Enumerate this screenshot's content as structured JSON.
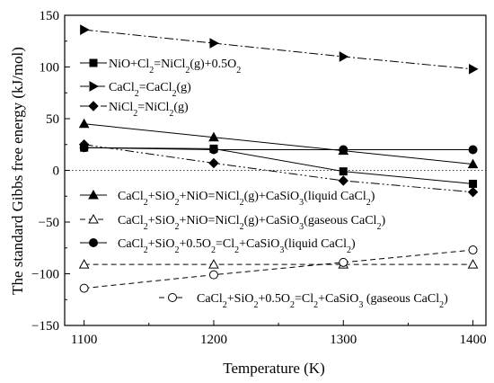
{
  "chart_data": {
    "type": "line",
    "xlabel": "Temperature (K)",
    "ylabel": "The standard Gibbs free energy (kJ/mol)",
    "xlim": [
      1085,
      1410
    ],
    "ylim": [
      -150,
      150
    ],
    "x_ticks": [
      1100,
      1200,
      1300,
      1400
    ],
    "y_ticks": [
      -150,
      -100,
      -50,
      0,
      50,
      100,
      150
    ],
    "zero_line": true,
    "grid": false,
    "series": [
      {
        "legend": [
          {
            "t": "NiO+Cl"
          },
          {
            "t": "2",
            "s": "sub"
          },
          {
            "t": "=NiCl"
          },
          {
            "t": "2",
            "s": "sub"
          },
          {
            "t": "(g)+0.5O"
          },
          {
            "t": "2",
            "s": "sub"
          }
        ],
        "marker": "square",
        "filled": true,
        "dash": "",
        "x": [
          1100,
          1200,
          1300,
          1400
        ],
        "y": [
          22,
          21,
          -1,
          -13
        ]
      },
      {
        "legend": [
          {
            "t": "CaCl"
          },
          {
            "t": "2",
            "s": "sub"
          },
          {
            "t": "=CaCl"
          },
          {
            "t": "2",
            "s": "sub"
          },
          {
            "t": "(g)"
          }
        ],
        "marker": "triangle-right",
        "filled": true,
        "dash": "10 3 2 3",
        "x": [
          1100,
          1200,
          1300,
          1400
        ],
        "y": [
          136,
          123,
          110,
          98
        ]
      },
      {
        "legend": [
          {
            "t": "NiCl"
          },
          {
            "t": "2",
            "s": "sub"
          },
          {
            "t": "=NiCl"
          },
          {
            "t": "2",
            "s": "sub"
          },
          {
            "t": "(g)"
          }
        ],
        "marker": "diamond",
        "filled": true,
        "dash": "10 3 2 3 2 3",
        "x": [
          1100,
          1200,
          1300,
          1400
        ],
        "y": [
          25,
          7,
          -10,
          -21
        ]
      },
      {
        "legend": [
          {
            "t": "CaCl"
          },
          {
            "t": "2",
            "s": "sub"
          },
          {
            "t": "+SiO"
          },
          {
            "t": "2",
            "s": "sub"
          },
          {
            "t": "+NiO=NiCl"
          },
          {
            "t": "2",
            "s": "sub"
          },
          {
            "t": "(g)+CaSiO"
          },
          {
            "t": "3",
            "s": "sub"
          },
          {
            "t": "(liquid CaCl"
          },
          {
            "t": "2",
            "s": "sub"
          },
          {
            "t": ")"
          }
        ],
        "marker": "triangle-up",
        "filled": true,
        "dash": "",
        "x": [
          1100,
          1200,
          1300,
          1400
        ],
        "y": [
          45,
          32,
          19,
          6
        ]
      },
      {
        "legend": [
          {
            "t": "CaCl"
          },
          {
            "t": "2",
            "s": "sub"
          },
          {
            "t": "+SiO"
          },
          {
            "t": "2",
            "s": "sub"
          },
          {
            "t": "+NiO=NiCl"
          },
          {
            "t": "2",
            "s": "sub"
          },
          {
            "t": "(g)+CaSiO"
          },
          {
            "t": "3",
            "s": "sub"
          },
          {
            "t": "(gaseous CaCl"
          },
          {
            "t": "2",
            "s": "sub"
          },
          {
            "t": ")"
          }
        ],
        "marker": "triangle-up",
        "filled": false,
        "dash": "6 4",
        "x": [
          1100,
          1200,
          1300,
          1400
        ],
        "y": [
          -91,
          -91,
          -91,
          -91
        ]
      },
      {
        "legend": [
          {
            "t": "CaCl"
          },
          {
            "t": "2",
            "s": "sub"
          },
          {
            "t": "+SiO"
          },
          {
            "t": "2",
            "s": "sub"
          },
          {
            "t": "+0.5O"
          },
          {
            "t": "2",
            "s": "sub"
          },
          {
            "t": "=Cl"
          },
          {
            "t": "2",
            "s": "sub"
          },
          {
            "t": "+CaSiO"
          },
          {
            "t": "3",
            "s": "sub"
          },
          {
            "t": "(liquid CaCl"
          },
          {
            "t": "2",
            "s": "sub"
          },
          {
            "t": ")"
          }
        ],
        "marker": "circle",
        "filled": true,
        "dash": "",
        "x": [
          1100,
          1200,
          1300,
          1400
        ],
        "y": [
          22,
          20,
          20,
          20
        ]
      },
      {
        "legend": [
          {
            "t": "CaCl"
          },
          {
            "t": "2",
            "s": "sub"
          },
          {
            "t": "+SiO"
          },
          {
            "t": "2",
            "s": "sub"
          },
          {
            "t": "+0.5O"
          },
          {
            "t": "2",
            "s": "sub"
          },
          {
            "t": "=Cl"
          },
          {
            "t": "2",
            "s": "sub"
          },
          {
            "t": "+CaSiO"
          },
          {
            "t": "3",
            "s": "sub"
          },
          {
            "t": " (gaseous CaCl"
          },
          {
            "t": "2",
            "s": "sub"
          },
          {
            "t": ")"
          }
        ],
        "marker": "circle",
        "filled": false,
        "dash": "6 4",
        "x": [
          1100,
          1200,
          1300,
          1400
        ],
        "y": [
          -114,
          -101,
          -89,
          -77
        ]
      }
    ]
  }
}
